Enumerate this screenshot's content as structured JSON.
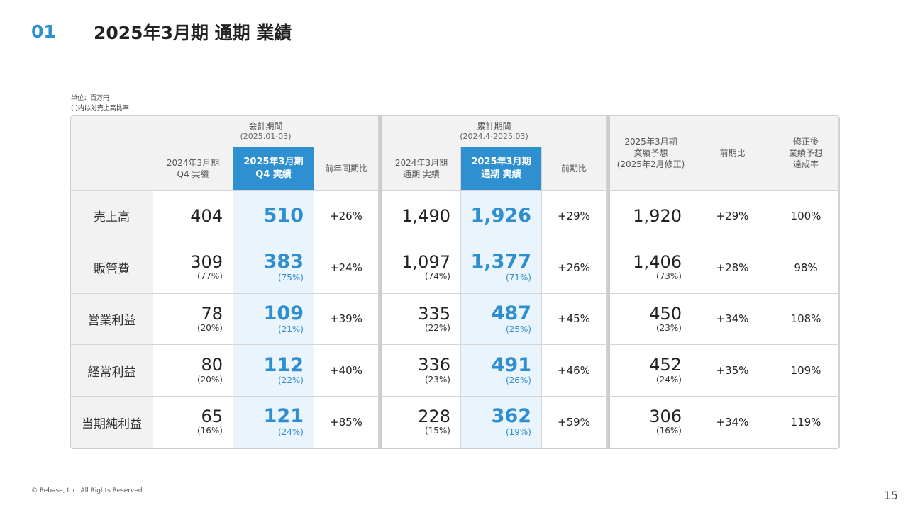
{
  "section_number": "01",
  "title": "2025年3月期 通期 業績",
  "notes": {
    "unit": "単位：百万円",
    "ratio": "( )内は対売上高比率"
  },
  "header": {
    "group_quarter": {
      "label": "会計期間",
      "period": "(2025.01-03)"
    },
    "group_cumulative": {
      "label": "累計期間",
      "period": "(2024.4-2025.03)"
    },
    "q_prev": [
      "2024年3月期",
      "Q4 実績"
    ],
    "q_curr": [
      "2025年3月期",
      "Q4 実績"
    ],
    "q_yoy": "前年同期比",
    "c_prev": [
      "2024年3月期",
      "通期 実績"
    ],
    "c_curr": [
      "2025年3月期",
      "通期 実績"
    ],
    "c_yoy": "前期比",
    "forecast": [
      "2025年3月期",
      "業績予想",
      "(2025年2月修正)"
    ],
    "f_yoy": "前期比",
    "achieve": [
      "修正後",
      "業績予想",
      "達成率"
    ]
  },
  "rows": [
    {
      "label": "売上高",
      "q_prev": {
        "v": "404",
        "p": ""
      },
      "q_curr": {
        "v": "510",
        "p": ""
      },
      "q_yoy": "+26%",
      "c_prev": {
        "v": "1,490",
        "p": ""
      },
      "c_curr": {
        "v": "1,926",
        "p": ""
      },
      "c_yoy": "+29%",
      "forecast": {
        "v": "1,920",
        "p": ""
      },
      "f_yoy": "+29%",
      "achieve": "100%"
    },
    {
      "label": "販管費",
      "q_prev": {
        "v": "309",
        "p": "(77%)"
      },
      "q_curr": {
        "v": "383",
        "p": "(75%)"
      },
      "q_yoy": "+24%",
      "c_prev": {
        "v": "1,097",
        "p": "(74%)"
      },
      "c_curr": {
        "v": "1,377",
        "p": "(71%)"
      },
      "c_yoy": "+26%",
      "forecast": {
        "v": "1,406",
        "p": "(73%)"
      },
      "f_yoy": "+28%",
      "achieve": "98%"
    },
    {
      "label": "営業利益",
      "q_prev": {
        "v": "78",
        "p": "(20%)"
      },
      "q_curr": {
        "v": "109",
        "p": "(21%)"
      },
      "q_yoy": "+39%",
      "c_prev": {
        "v": "335",
        "p": "(22%)"
      },
      "c_curr": {
        "v": "487",
        "p": "(25%)"
      },
      "c_yoy": "+45%",
      "forecast": {
        "v": "450",
        "p": "(23%)"
      },
      "f_yoy": "+34%",
      "achieve": "108%"
    },
    {
      "label": "経常利益",
      "q_prev": {
        "v": "80",
        "p": "(20%)"
      },
      "q_curr": {
        "v": "112",
        "p": "(22%)"
      },
      "q_yoy": "+40%",
      "c_prev": {
        "v": "336",
        "p": "(23%)"
      },
      "c_curr": {
        "v": "491",
        "p": "(26%)"
      },
      "c_yoy": "+46%",
      "forecast": {
        "v": "452",
        "p": "(24%)"
      },
      "f_yoy": "+35%",
      "achieve": "109%"
    },
    {
      "label": "当期純利益",
      "q_prev": {
        "v": "65",
        "p": "(16%)"
      },
      "q_curr": {
        "v": "121",
        "p": "(24%)"
      },
      "q_yoy": "+85%",
      "c_prev": {
        "v": "228",
        "p": "(15%)"
      },
      "c_curr": {
        "v": "362",
        "p": "(19%)"
      },
      "c_yoy": "+59%",
      "forecast": {
        "v": "306",
        "p": "(16%)"
      },
      "f_yoy": "+34%",
      "achieve": "119%"
    }
  ],
  "footer": "© Rebase, Inc. All Rights Reserved.",
  "page_number": "15"
}
